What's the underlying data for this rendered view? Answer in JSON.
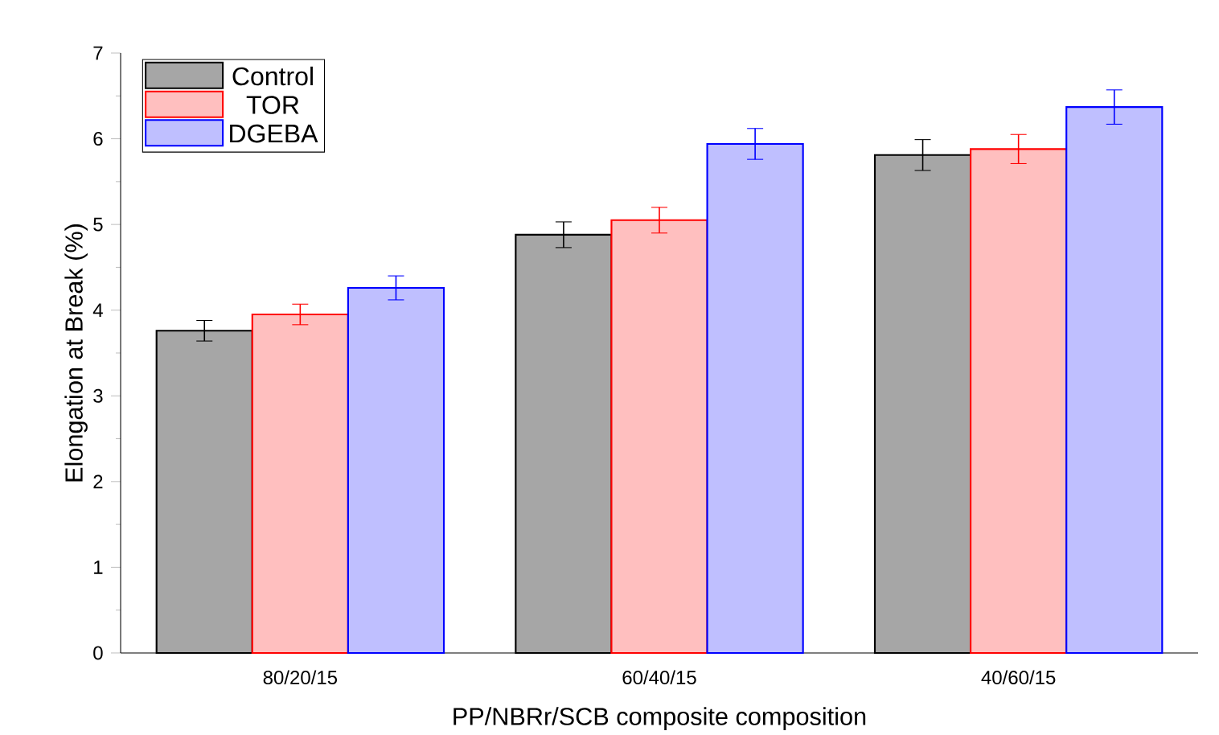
{
  "chart_data": {
    "type": "bar",
    "xlabel": "PP/NBRr/SCB composite composition",
    "ylabel": "Elongation at Break (%)",
    "categories": [
      "80/20/15",
      "60/40/15",
      "40/60/15"
    ],
    "series": [
      {
        "name": "Control",
        "color": "#000000",
        "values": [
          3.76,
          4.88,
          5.81
        ],
        "errors": [
          0.12,
          0.15,
          0.18
        ]
      },
      {
        "name": "TOR",
        "color": "#ff0000",
        "values": [
          3.95,
          5.05,
          5.88
        ],
        "errors": [
          0.12,
          0.15,
          0.17
        ]
      },
      {
        "name": "DGEBA",
        "color": "#0000ff",
        "values": [
          4.26,
          5.94,
          6.37
        ],
        "errors": [
          0.14,
          0.18,
          0.2
        ]
      }
    ],
    "ylim": [
      0,
      7
    ],
    "yticks": [
      0,
      1,
      2,
      3,
      4,
      5,
      6,
      7
    ],
    "legend": "top left",
    "grid": false
  }
}
